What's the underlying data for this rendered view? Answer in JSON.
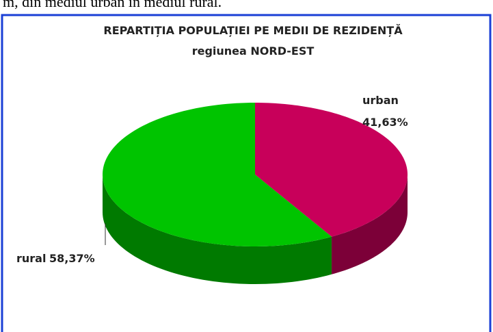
{
  "document_text": "m, din mediul urban în mediul rural.",
  "chart_data": {
    "type": "pie3d",
    "title": "REPARTIȚIA POPULAȚIEI PE MEDII DE REZIDENȚĂ",
    "subtitle": "regiunea NORD-EST",
    "categories": [
      "urban",
      "rural"
    ],
    "values": [
      41.63,
      58.37
    ],
    "value_labels": [
      "41,63%",
      "58,37%"
    ],
    "colors": [
      "#c8005a",
      "#00c400"
    ]
  }
}
